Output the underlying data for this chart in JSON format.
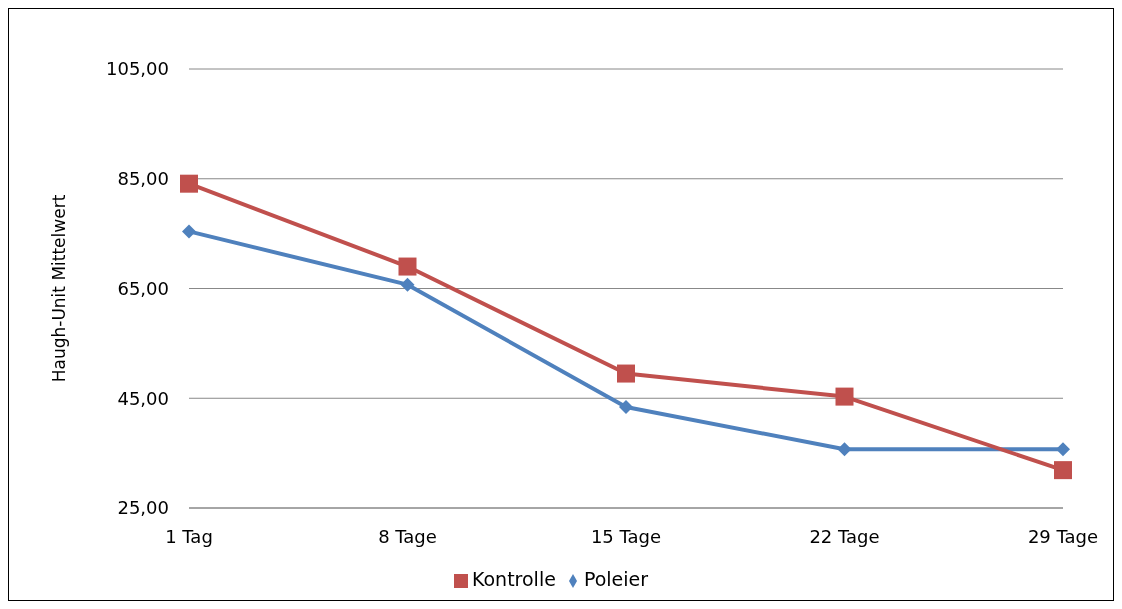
{
  "chart_data": {
    "type": "line",
    "ylabel": "Haugh-Unit Mittelwert",
    "categories": [
      "1 Tag",
      "8 Tage",
      "15 Tage",
      "22 Tage",
      "29 Tage"
    ],
    "series": [
      {
        "name": "Poleier",
        "color": "#4f81bd",
        "marker": "diamond",
        "values": [
          75.4,
          65.7,
          43.4,
          35.7,
          35.7
        ]
      },
      {
        "name": "Kontrolle",
        "color": "#c0504d",
        "marker": "square",
        "values": [
          84.1,
          69.0,
          49.5,
          45.3,
          31.9
        ]
      }
    ],
    "ylim": [
      25,
      105
    ],
    "yticks": [
      {
        "value": 25,
        "label": "25,00"
      },
      {
        "value": 45,
        "label": "45,00"
      },
      {
        "value": 65,
        "label": "65,00"
      },
      {
        "value": 85,
        "label": "85,00"
      },
      {
        "value": 105,
        "label": "105,00"
      }
    ],
    "grid": "y",
    "legend": "bottom",
    "line_style": "solid"
  }
}
